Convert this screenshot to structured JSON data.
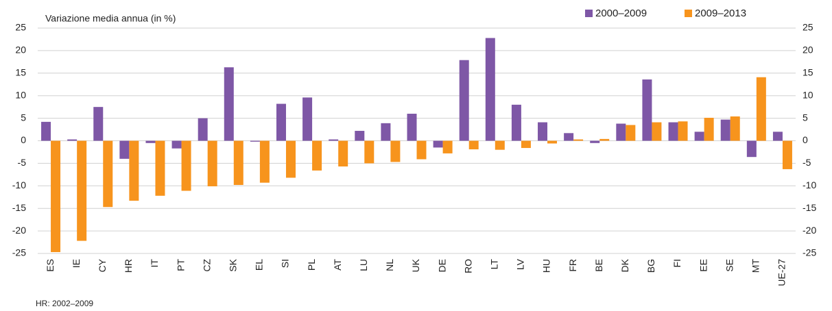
{
  "chart_data": {
    "type": "bar",
    "title": "Variazione media annua (in %)",
    "note": "HR: 2002–2009",
    "categories": [
      "ES",
      "IE",
      "CY",
      "HR",
      "IT",
      "PT",
      "CZ",
      "SK",
      "EL",
      "SI",
      "PL",
      "AT",
      "LU",
      "NL",
      "UK",
      "DE",
      "RO",
      "LT",
      "LV",
      "HU",
      "FR",
      "BE",
      "DK",
      "BG",
      "FI",
      "EE",
      "SE",
      "MT",
      "UE-27"
    ],
    "series": [
      {
        "name": "2000–2009",
        "color": "#7e57a6",
        "values": [
          4.2,
          0.3,
          7.5,
          -4,
          -0.5,
          -1.7,
          5,
          16.3,
          -0.2,
          8.2,
          9.6,
          0.3,
          2.2,
          3.9,
          6,
          -1.5,
          17.9,
          22.8,
          8,
          4.1,
          1.7,
          -0.5,
          3.8,
          13.6,
          4.1,
          2,
          4.7,
          -3.6,
          2
        ]
      },
      {
        "name": "2009–2013",
        "color": "#f7941d",
        "values": [
          -24.7,
          -22.2,
          -14.7,
          -13.3,
          -12.2,
          -11.1,
          -10.1,
          -9.8,
          -9.3,
          -8.2,
          -6.6,
          -5.7,
          -5,
          -4.7,
          -4.1,
          -2.8,
          -1.9,
          -2,
          -1.6,
          -0.6,
          0.3,
          0.4,
          3.5,
          4.1,
          4.3,
          5.1,
          5.4,
          14.1,
          -6.3
        ]
      }
    ],
    "ylim": [
      -25,
      25
    ],
    "yticks": [
      -25,
      -20,
      -15,
      -10,
      -5,
      0,
      5,
      10,
      15,
      20,
      25
    ],
    "y2lim": [
      -25,
      25
    ],
    "y2ticks": [
      -25,
      -20,
      -15,
      -10,
      -5,
      0,
      5,
      10,
      15,
      20,
      25
    ],
    "grid": true
  }
}
